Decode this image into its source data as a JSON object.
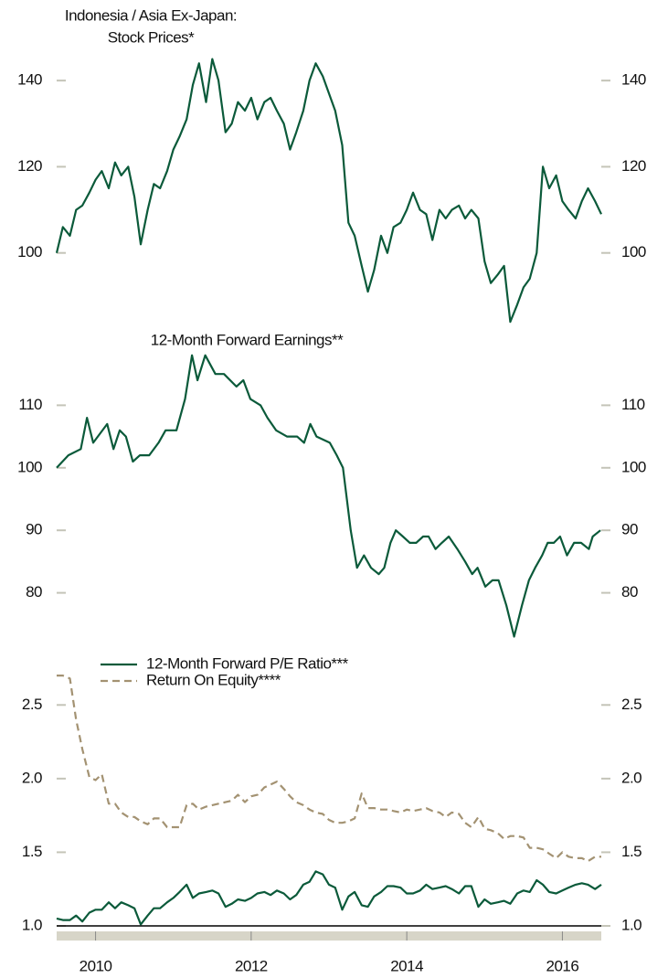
{
  "chart_data": [
    {
      "type": "line",
      "title": [
        "Indonesia / Asia Ex-Japan:",
        "Stock Prices*"
      ],
      "x": [
        2009.5,
        2009.58,
        2009.67,
        2009.75,
        2009.83,
        2009.92,
        2010.0,
        2010.08,
        2010.17,
        2010.25,
        2010.33,
        2010.42,
        2010.5,
        2010.58,
        2010.67,
        2010.75,
        2010.83,
        2010.92,
        2011.0,
        2011.08,
        2011.17,
        2011.25,
        2011.33,
        2011.42,
        2011.5,
        2011.58,
        2011.67,
        2011.75,
        2011.83,
        2011.92,
        2012.0,
        2012.08,
        2012.17,
        2012.25,
        2012.33,
        2012.42,
        2012.5,
        2012.58,
        2012.67,
        2012.75,
        2012.83,
        2012.92,
        2013.0,
        2013.08,
        2013.17,
        2013.25,
        2013.33,
        2013.42,
        2013.5,
        2013.58,
        2013.67,
        2013.75,
        2013.83,
        2013.92,
        2014.0,
        2014.08,
        2014.17,
        2014.25,
        2014.33,
        2014.42,
        2014.5,
        2014.58,
        2014.67,
        2014.75,
        2014.83,
        2014.92,
        2015.0,
        2015.08,
        2015.17,
        2015.25,
        2015.33,
        2015.42,
        2015.5,
        2015.58,
        2015.67,
        2015.75,
        2015.83,
        2015.92,
        2016.0,
        2016.08,
        2016.17,
        2016.25,
        2016.33,
        2016.42,
        2016.5
      ],
      "values": [
        100,
        106,
        104,
        110,
        111,
        114,
        117,
        119,
        115,
        121,
        118,
        120,
        113,
        102,
        110,
        116,
        115,
        119,
        124,
        127,
        131,
        139,
        144,
        135,
        145,
        140,
        128,
        130,
        135,
        133,
        136,
        131,
        135,
        136,
        133,
        130,
        124,
        128,
        133,
        140,
        144,
        141,
        137,
        133,
        125,
        107,
        104,
        97,
        91,
        96,
        104,
        100,
        106,
        107,
        110,
        114,
        110,
        109,
        103,
        110,
        108,
        110,
        111,
        108,
        110,
        108,
        98,
        93,
        95,
        97,
        84,
        88,
        92,
        94,
        100,
        120,
        115,
        118,
        112,
        110,
        108,
        112,
        115,
        112,
        109
      ],
      "color": "#0b5a3a",
      "xlim": [
        2009.5,
        2016.5
      ],
      "ylim": [
        80,
        150
      ],
      "yticks": [
        100,
        120,
        140
      ]
    },
    {
      "type": "line",
      "title": "12-Month Forward Earnings**",
      "x": [
        2009.5,
        2009.65,
        2009.81,
        2009.89,
        2009.97,
        2010.15,
        2010.23,
        2010.31,
        2010.39,
        2010.48,
        2010.57,
        2010.69,
        2010.81,
        2010.9,
        2011.04,
        2011.15,
        2011.24,
        2011.31,
        2011.41,
        2011.54,
        2011.65,
        2011.81,
        2011.9,
        2011.99,
        2012.12,
        2012.21,
        2012.32,
        2012.46,
        2012.59,
        2012.68,
        2012.76,
        2012.84,
        2013.01,
        2013.1,
        2013.18,
        2013.28,
        2013.36,
        2013.45,
        2013.54,
        2013.64,
        2013.71,
        2013.79,
        2013.86,
        2013.95,
        2014.04,
        2014.12,
        2014.21,
        2014.28,
        2014.37,
        2014.45,
        2014.54,
        2014.65,
        2014.75,
        2014.84,
        2014.91,
        2015.01,
        2015.1,
        2015.18,
        2015.28,
        2015.38,
        2015.48,
        2015.57,
        2015.65,
        2015.74,
        2015.81,
        2015.89,
        2015.97,
        2016.06,
        2016.15,
        2016.24,
        2016.34,
        2016.39,
        2016.49
      ],
      "values": [
        100,
        102,
        103,
        108,
        104,
        107,
        103,
        106,
        105,
        101,
        102,
        102,
        104,
        106,
        106,
        111,
        118,
        114,
        118,
        115,
        115,
        113,
        114,
        111,
        110,
        108,
        106,
        105,
        105,
        104,
        107,
        105,
        104,
        102,
        100,
        90,
        84,
        86,
        84,
        83,
        84,
        88,
        90,
        89,
        88,
        88,
        89,
        89,
        87,
        88,
        89,
        87,
        85,
        83,
        84,
        81,
        82,
        82,
        78,
        73,
        78,
        82,
        84,
        86,
        88,
        88,
        89,
        86,
        88,
        88,
        87,
        89,
        90
      ],
      "color": "#0b5a3a",
      "xlim": [
        2009.5,
        2016.5
      ],
      "ylim": [
        70,
        120
      ],
      "yticks": [
        80,
        90,
        100,
        110
      ]
    },
    {
      "type": "line",
      "x": [
        2009.5,
        2009.58,
        2009.67,
        2009.75,
        2009.83,
        2009.92,
        2010.0,
        2010.08,
        2010.17,
        2010.25,
        2010.33,
        2010.42,
        2010.5,
        2010.58,
        2010.67,
        2010.75,
        2010.83,
        2010.92,
        2011.0,
        2011.08,
        2011.17,
        2011.25,
        2011.33,
        2011.42,
        2011.5,
        2011.58,
        2011.67,
        2011.75,
        2011.83,
        2011.92,
        2012.0,
        2012.08,
        2012.17,
        2012.25,
        2012.33,
        2012.42,
        2012.5,
        2012.58,
        2012.67,
        2012.75,
        2012.83,
        2012.92,
        2013.0,
        2013.08,
        2013.17,
        2013.25,
        2013.33,
        2013.42,
        2013.5,
        2013.58,
        2013.67,
        2013.75,
        2013.83,
        2013.92,
        2014.0,
        2014.08,
        2014.17,
        2014.25,
        2014.33,
        2014.42,
        2014.5,
        2014.58,
        2014.67,
        2014.75,
        2014.83,
        2014.92,
        2015.0,
        2015.08,
        2015.17,
        2015.25,
        2015.33,
        2015.42,
        2015.5,
        2015.58,
        2015.67,
        2015.75,
        2015.83,
        2015.92,
        2016.0,
        2016.08,
        2016.17,
        2016.25,
        2016.33,
        2016.42,
        2016.5
      ],
      "series": [
        {
          "name": "12-Month Forward P/E Ratio***",
          "color": "#0b5a3a",
          "line_style": "solid",
          "values": [
            1.05,
            1.04,
            1.04,
            1.07,
            1.03,
            1.09,
            1.11,
            1.11,
            1.16,
            1.12,
            1.16,
            1.14,
            1.12,
            1.01,
            1.07,
            1.12,
            1.12,
            1.16,
            1.19,
            1.23,
            1.28,
            1.19,
            1.22,
            1.23,
            1.24,
            1.22,
            1.13,
            1.15,
            1.18,
            1.17,
            1.19,
            1.22,
            1.23,
            1.21,
            1.24,
            1.22,
            1.18,
            1.21,
            1.28,
            1.3,
            1.37,
            1.35,
            1.28,
            1.26,
            1.11,
            1.2,
            1.23,
            1.14,
            1.13,
            1.2,
            1.23,
            1.27,
            1.27,
            1.26,
            1.22,
            1.22,
            1.24,
            1.28,
            1.25,
            1.26,
            1.27,
            1.25,
            1.22,
            1.27,
            1.27,
            1.13,
            1.18,
            1.15,
            1.16,
            1.17,
            1.15,
            1.22,
            1.24,
            1.23,
            1.31,
            1.28,
            1.23,
            1.22,
            1.24,
            1.26,
            1.28,
            1.29,
            1.28,
            1.25,
            1.28
          ]
        },
        {
          "name": "Return On Equity****",
          "color": "#a39272",
          "line_style": "dashed",
          "values": [
            2.7,
            2.7,
            2.68,
            2.4,
            2.2,
            2.01,
            1.99,
            2.03,
            1.83,
            1.83,
            1.77,
            1.74,
            1.74,
            1.71,
            1.69,
            1.73,
            1.73,
            1.67,
            1.67,
            1.67,
            1.82,
            1.83,
            1.79,
            1.81,
            1.82,
            1.83,
            1.84,
            1.85,
            1.89,
            1.84,
            1.88,
            1.89,
            1.94,
            1.96,
            1.98,
            1.93,
            1.88,
            1.84,
            1.82,
            1.79,
            1.77,
            1.76,
            1.72,
            1.7,
            1.7,
            1.71,
            1.73,
            1.9,
            1.8,
            1.8,
            1.79,
            1.79,
            1.78,
            1.77,
            1.79,
            1.78,
            1.79,
            1.8,
            1.78,
            1.77,
            1.74,
            1.77,
            1.76,
            1.7,
            1.67,
            1.74,
            1.66,
            1.65,
            1.63,
            1.59,
            1.61,
            1.61,
            1.6,
            1.53,
            1.53,
            1.52,
            1.49,
            1.46,
            1.5,
            1.47,
            1.46,
            1.46,
            1.44,
            1.47,
            1.47
          ]
        }
      ],
      "xlim": [
        2009.5,
        2016.5
      ],
      "ylim": [
        1.0,
        2.75
      ],
      "yticks": [
        {
          "value": 1.0,
          "label": "1.0"
        },
        1.5,
        {
          "value": 2.0,
          "label": "2.0"
        },
        2.5
      ],
      "xticks": [
        2010,
        2012,
        2014,
        2016
      ],
      "legend": "top-left"
    }
  ]
}
